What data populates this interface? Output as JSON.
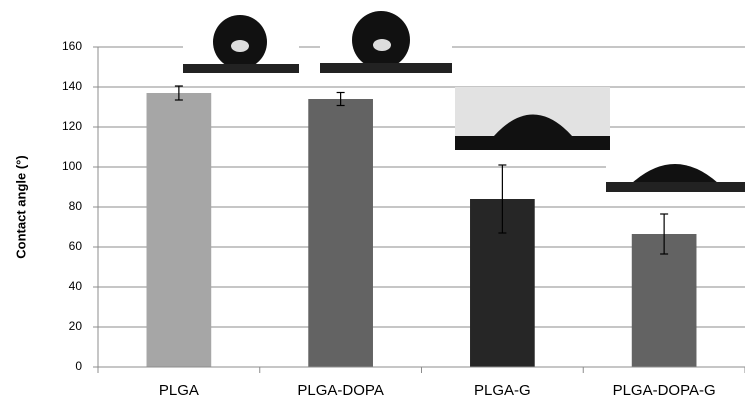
{
  "chart_data": {
    "type": "bar",
    "y_label": "Contact angle (°)",
    "categories": [
      "PLGA",
      "PLGA-DOPA",
      "PLGA-G",
      "PLGA-DOPA-G"
    ],
    "values": [
      137,
      134,
      84,
      66.5
    ],
    "errors": [
      3.5,
      3.25,
      17,
      10
    ],
    "colors": [
      "#a6a6a6",
      "#636363",
      "#262626",
      "#636363"
    ],
    "ylim": [
      0,
      160
    ],
    "yticks": [
      0,
      20,
      40,
      60,
      80,
      100,
      120,
      140,
      160
    ],
    "grid": true
  }
}
